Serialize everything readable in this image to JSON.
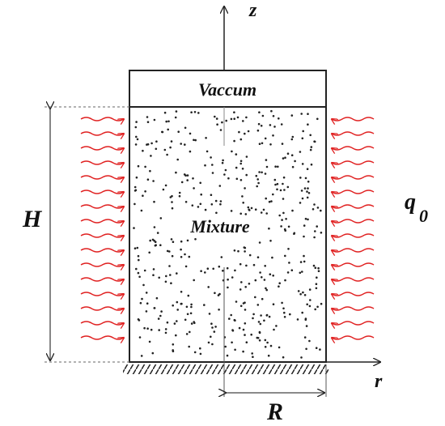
{
  "axes": {
    "z": "z",
    "r": "r"
  },
  "regions": {
    "vacuum": "Vaccum",
    "mixture": "Mixture"
  },
  "dimensions": {
    "height": "H",
    "radius": "R"
  },
  "heat_flux": {
    "symbol": "q",
    "subscript": "0"
  }
}
